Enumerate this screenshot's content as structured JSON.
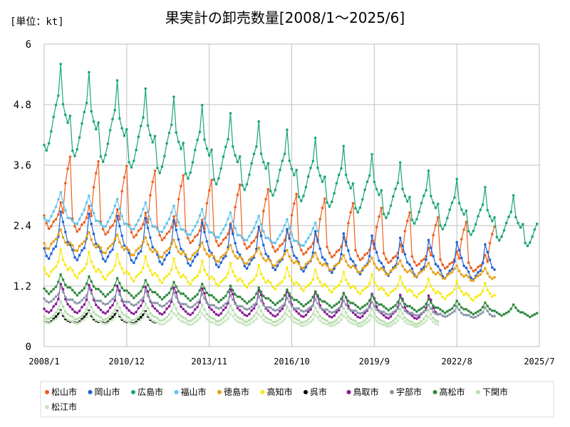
{
  "chart_data": {
    "type": "line",
    "title": "果実計の卸売数量[2008/1～2025/6]",
    "unit_label": "[単位：kt]",
    "x_start": "2008-01",
    "x_end": "2025-07",
    "xticks": [
      "2008/1",
      "2010/12",
      "2013/11",
      "2016/10",
      "2019/9",
      "2022/8",
      "2025/7"
    ],
    "ylim": [
      0,
      6
    ],
    "yticks": [
      "0",
      "1.2",
      "2.4",
      "3.6",
      "4.8",
      "6"
    ],
    "grid": true,
    "legend_position": "bottom",
    "series": [
      {
        "name": "松山市",
        "color": "#ed5f1f",
        "start": "2008-01",
        "end": "2023-12",
        "base": [
          2.6,
          2.45,
          2.35,
          2.4,
          2.5,
          2.55,
          2.65,
          2.9,
          2.7,
          3.3,
          3.6,
          3.85
        ],
        "scale_end": 0.58
      },
      {
        "name": "岡山市",
        "color": "#1f63d6",
        "start": "2008-01",
        "end": "2023-12",
        "base": [
          1.95,
          1.8,
          1.75,
          1.85,
          1.95,
          2.0,
          2.2,
          2.7,
          2.5,
          2.3,
          2.1,
          2.05
        ],
        "scale_end": 0.72
      },
      {
        "name": "広島市",
        "color": "#1aa57a",
        "start": "2008-01",
        "end": "2025-06",
        "base": [
          4.0,
          3.9,
          4.05,
          4.3,
          4.6,
          4.85,
          5.05,
          5.7,
          4.9,
          4.7,
          4.55,
          4.7
        ],
        "scale_end": 0.5
      },
      {
        "name": "福山市",
        "color": "#62c4ec",
        "start": "2008-01",
        "end": "2017-09",
        "base": [
          2.55,
          2.5,
          2.5,
          2.6,
          2.7,
          2.8,
          2.95,
          3.1,
          2.9,
          2.75,
          2.6,
          2.6
        ],
        "scale_end": 0.62
      },
      {
        "name": "徳島市",
        "color": "#e6a118",
        "start": "2008-01",
        "end": "2023-12",
        "base": [
          2.05,
          1.95,
          1.95,
          2.05,
          2.1,
          2.15,
          2.25,
          2.35,
          2.2,
          2.1,
          2.05,
          2.1
        ],
        "scale_end": 0.62
      },
      {
        "name": "高知市",
        "color": "#f6ea14",
        "start": "2008-01",
        "end": "2023-12",
        "base": [
          1.55,
          1.45,
          1.4,
          1.5,
          1.55,
          1.6,
          1.7,
          1.95,
          1.75,
          1.65,
          1.55,
          1.6
        ],
        "scale_end": 0.6
      },
      {
        "name": "呉市",
        "color": "#000000",
        "start": "2008-01",
        "end": "2011-12",
        "base": [
          0.5,
          0.48,
          0.47,
          0.5,
          0.55,
          0.6,
          0.65,
          0.72,
          0.62,
          0.55,
          0.52,
          0.5
        ],
        "scale_end": 0.85
      },
      {
        "name": "鳥取市",
        "color": "#8b1a98",
        "start": "2008-01",
        "end": "2021-12",
        "base": [
          0.75,
          0.7,
          0.68,
          0.72,
          0.8,
          0.85,
          0.95,
          1.25,
          1.15,
          0.95,
          0.85,
          0.8
        ],
        "scale_end": 0.75
      },
      {
        "name": "宇部市",
        "color": "#8a98a8",
        "start": "2008-01",
        "end": "2023-12",
        "base": [
          0.95,
          0.9,
          0.88,
          0.9,
          0.95,
          1.0,
          1.05,
          1.2,
          1.1,
          1.0,
          0.95,
          0.95
        ],
        "scale_end": 0.6
      },
      {
        "name": "高松市",
        "color": "#2f8a3e",
        "start": "2008-01",
        "end": "2025-06",
        "base": [
          1.15,
          1.1,
          1.05,
          1.1,
          1.15,
          1.2,
          1.3,
          1.45,
          1.35,
          1.25,
          1.2,
          1.2
        ],
        "scale_end": 0.55
      },
      {
        "name": "下関市",
        "color": "#b8ddb0",
        "start": "2008-01",
        "end": "2021-12",
        "base": [
          0.6,
          0.55,
          0.55,
          0.58,
          0.62,
          0.68,
          0.75,
          0.9,
          0.8,
          0.7,
          0.65,
          0.62
        ],
        "scale_end": 0.75
      },
      {
        "name": "松江市",
        "color": "#c9e6c2",
        "start": "2008-01",
        "end": "2021-12",
        "base": [
          0.5,
          0.47,
          0.46,
          0.48,
          0.52,
          0.55,
          0.6,
          0.7,
          0.65,
          0.58,
          0.54,
          0.52
        ],
        "scale_end": 0.8
      }
    ]
  }
}
